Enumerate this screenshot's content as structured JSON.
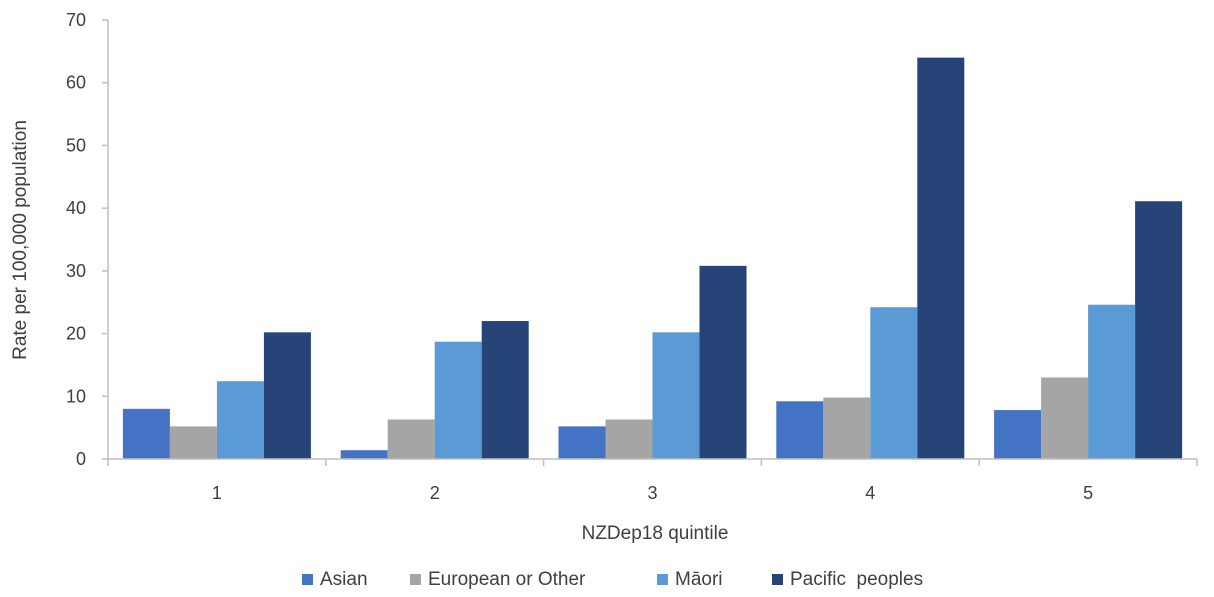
{
  "chart_data": {
    "type": "bar",
    "title": "",
    "xlabel": "NZDep18 quintile",
    "ylabel": "Rate per 100,000 population",
    "categories": [
      "1",
      "2",
      "3",
      "4",
      "5"
    ],
    "ylim": [
      0,
      70
    ],
    "yticks": [
      0,
      10,
      20,
      30,
      40,
      50,
      60,
      70
    ],
    "grid": false,
    "legend_position": "bottom",
    "series": [
      {
        "name": "Asian",
        "color": "#4472C4",
        "values": [
          8.0,
          1.4,
          5.2,
          9.2,
          7.8
        ]
      },
      {
        "name": "European or Other",
        "color": "#A5A5A5",
        "values": [
          5.2,
          6.3,
          6.3,
          9.8,
          13.0
        ]
      },
      {
        "name": "Māori",
        "color": "#5B9BD5",
        "values": [
          12.4,
          18.7,
          20.2,
          24.2,
          24.6
        ]
      },
      {
        "name": "Pacific  peoples",
        "color": "#264478",
        "values": [
          20.2,
          22.0,
          30.8,
          64.0,
          41.1
        ]
      }
    ]
  }
}
